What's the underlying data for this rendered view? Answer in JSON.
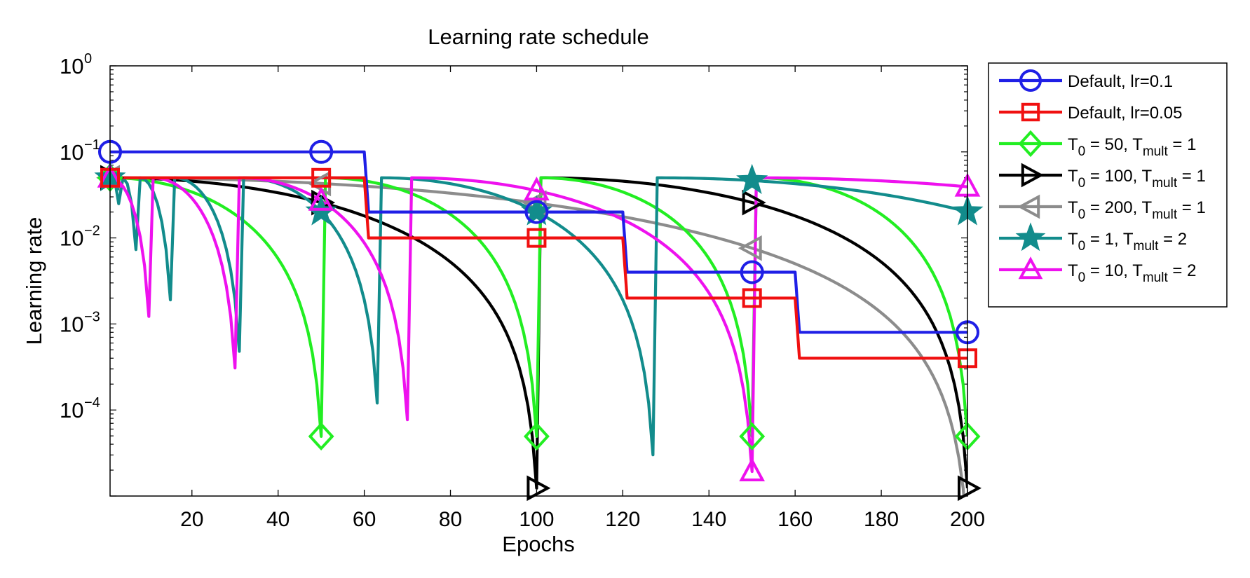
{
  "chart_data": {
    "type": "line",
    "title": "Learning rate schedule",
    "xlabel": "Epochs",
    "ylabel": "Learning rate",
    "xlim": [
      1,
      200
    ],
    "ylim": [
      1e-05,
      1
    ],
    "yscale": "log",
    "xticks": [
      20,
      40,
      60,
      80,
      100,
      120,
      140,
      160,
      180,
      200
    ],
    "xtick_labels": [
      "20",
      "40",
      "60",
      "80",
      "100",
      "120",
      "140",
      "160",
      "180",
      "200"
    ],
    "yticks": [
      {
        "value": 1,
        "base": "10",
        "exp": "0"
      },
      {
        "value": 0.1,
        "base": "10",
        "exp": "−1"
      },
      {
        "value": 0.01,
        "base": "10",
        "exp": "−2"
      },
      {
        "value": 0.001,
        "base": "10",
        "exp": "−3"
      },
      {
        "value": 0.0001,
        "base": "10",
        "exp": "−4"
      }
    ],
    "legend_position": "outside-right",
    "series": [
      {
        "name": "Default, lr=0.1",
        "label_parts": [
          "Default, lr=0.1"
        ],
        "color": "#1f1fe6",
        "marker": "circle",
        "kind": "step",
        "lr": 0.1,
        "steps": [
          [
            1,
            0.1
          ],
          [
            60,
            0.1
          ],
          [
            61,
            0.02
          ],
          [
            120,
            0.02
          ],
          [
            121,
            0.004
          ],
          [
            160,
            0.004
          ],
          [
            161,
            0.0008
          ],
          [
            200,
            0.0008
          ]
        ],
        "marker_x": [
          1,
          50,
          100,
          150,
          200
        ]
      },
      {
        "name": "Default, lr=0.05",
        "label_parts": [
          "Default, lr=0.05"
        ],
        "color": "#f01010",
        "marker": "square",
        "kind": "step",
        "lr": 0.05,
        "steps": [
          [
            1,
            0.05
          ],
          [
            60,
            0.05
          ],
          [
            61,
            0.01
          ],
          [
            120,
            0.01
          ],
          [
            121,
            0.002
          ],
          [
            160,
            0.002
          ],
          [
            161,
            0.0004
          ],
          [
            200,
            0.0004
          ]
        ],
        "marker_x": [
          1,
          50,
          100,
          150,
          200
        ]
      },
      {
        "name": "T_0 = 50, T_mult = 1",
        "label_parts": [
          "T",
          "0",
          " = 50, T",
          "mult",
          " = 1"
        ],
        "color": "#22ee22",
        "marker": "diamond",
        "kind": "sgdr",
        "lr": 0.05,
        "T0": 50,
        "Tmult": 1,
        "marker_x": [
          1,
          50,
          100,
          150,
          200
        ]
      },
      {
        "name": "T_0 = 100, T_mult = 1",
        "label_parts": [
          "T",
          "0",
          " = 100, T",
          "mult",
          " = 1"
        ],
        "color": "#000000",
        "marker": "triangle-right",
        "kind": "sgdr",
        "lr": 0.05,
        "T0": 100,
        "Tmult": 1,
        "marker_x": [
          1,
          50,
          100,
          150,
          200
        ]
      },
      {
        "name": "T_0 = 200, T_mult = 1",
        "label_parts": [
          "T",
          "0",
          " = 200, T",
          "mult",
          " = 1"
        ],
        "color": "#8c8c8c",
        "marker": "triangle-left",
        "kind": "sgdr",
        "lr": 0.05,
        "T0": 200,
        "Tmult": 1,
        "marker_x": [
          1,
          50,
          100,
          150,
          200
        ]
      },
      {
        "name": "T_0 = 1, T_mult = 2",
        "label_parts": [
          "T",
          "0",
          " = 1, T",
          "mult",
          " = 2"
        ],
        "color": "#128c8c",
        "marker": "star",
        "kind": "sgdr",
        "lr": 0.05,
        "T0": 1,
        "Tmult": 2,
        "marker_x": [
          1,
          50,
          100,
          150,
          200
        ]
      },
      {
        "name": "T_0 = 10, T_mult = 2",
        "label_parts": [
          "T",
          "0",
          " = 10, T",
          "mult",
          " = 2"
        ],
        "color": "#ee11ee",
        "marker": "triangle-up",
        "kind": "sgdr",
        "lr": 0.05,
        "T0": 10,
        "Tmult": 2,
        "marker_x": [
          1,
          50,
          100,
          150,
          200
        ]
      }
    ]
  }
}
